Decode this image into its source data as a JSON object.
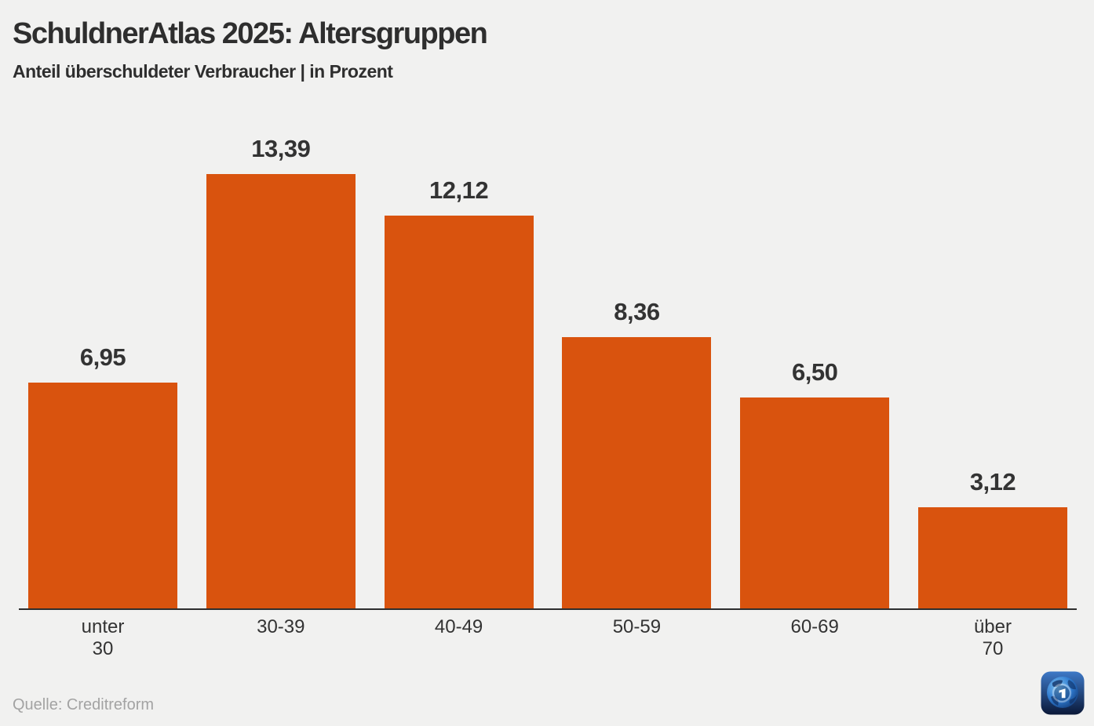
{
  "header": {
    "title": "SchuldnerAtlas 2025: Altersgruppen",
    "subtitle": "Anteil überschuldeter Verbraucher | in Prozent"
  },
  "chart_data": {
    "type": "bar",
    "title": "SchuldnerAtlas 2025: Altersgruppen",
    "subtitle": "Anteil überschuldeter Verbraucher | in Prozent",
    "categories": [
      "unter\n30",
      "30-39",
      "40-49",
      "50-59",
      "60-69",
      "über\n70"
    ],
    "values": [
      6.95,
      13.39,
      12.12,
      8.36,
      6.5,
      3.12
    ],
    "display_values": [
      "6,95",
      "13,39",
      "12,12",
      "8,36",
      "6,50",
      "3,12"
    ],
    "xlabel": "",
    "ylabel": "",
    "ylim": [
      0,
      13.39
    ],
    "unit": "Prozent",
    "grid": false,
    "legend": false,
    "bar_color": "#d9530e"
  },
  "footer": {
    "source": "Quelle: Creditreform",
    "logo": "tagesschau-globe-logo"
  },
  "colors": {
    "background": "#f1f1f0",
    "bar": "#d9530e",
    "text": "#2e2e2e",
    "value_text": "#333333",
    "axis": "#2e2e2e",
    "source_text": "#a3a3a3",
    "logo_blue_dark": "#0a1838",
    "logo_blue_light": "#3e79c7"
  }
}
